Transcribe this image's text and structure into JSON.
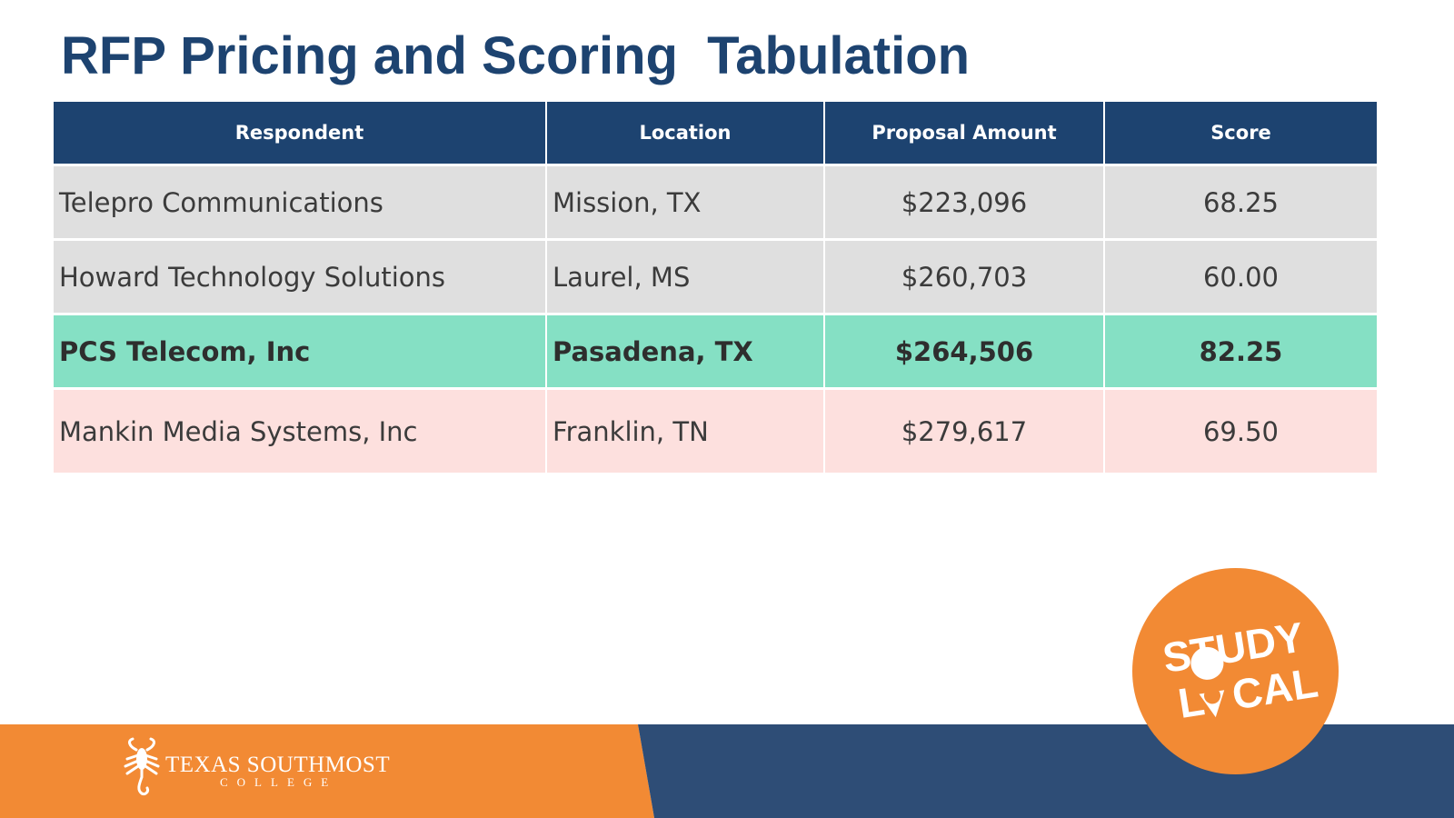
{
  "slide": {
    "title": "RFP Pricing and Scoring  Tabulation"
  },
  "table": {
    "headers": [
      "Respondent",
      "Location",
      "Proposal Amount",
      "Score"
    ],
    "rows": [
      {
        "respondent": "Telepro Communications",
        "location": "Mission, TX",
        "amount": "$223,096",
        "score": "68.25"
      },
      {
        "respondent": "Howard Technology Solutions",
        "location": "Laurel, MS",
        "amount": "$260,703",
        "score": "60.00"
      },
      {
        "respondent": "PCS Telecom, Inc",
        "location": "Pasadena, TX",
        "amount": "$264,506",
        "score": "82.25"
      },
      {
        "respondent": "Mankin Media Systems, Inc",
        "location": "Franklin, TN",
        "amount": "$279,617",
        "score": "69.50"
      }
    ]
  },
  "footer": {
    "logo_name": "Texas Southmost",
    "logo_sub": "COLLEGE",
    "badge_line1": "STUDY",
    "badge_line2a": "L",
    "badge_line2b": "CAL"
  },
  "colors": {
    "title": "#1d4370",
    "header_bg": "#1d4370",
    "row_gray": "#dfdfdf",
    "row_highlight": "#85e0c4",
    "row_pink": "#fde0de",
    "footer_orange": "#f28a34",
    "footer_navy": "#2e4d76"
  },
  "icons": [
    "scorpion-logo-icon",
    "location-pin-icon"
  ]
}
